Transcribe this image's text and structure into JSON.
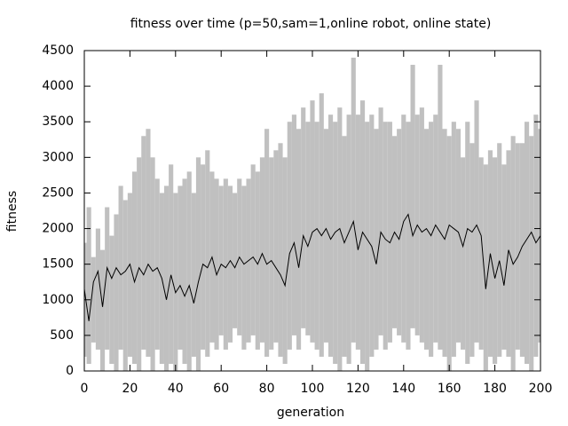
{
  "chart_data": {
    "type": "line",
    "title": "fitness over time (p=50,sam=1,online robot, online state)",
    "x_label": "generation",
    "y_label": "fitness",
    "x": [
      0,
      2,
      4,
      6,
      8,
      10,
      12,
      14,
      16,
      18,
      20,
      22,
      24,
      26,
      28,
      30,
      32,
      34,
      36,
      38,
      40,
      42,
      44,
      46,
      48,
      50,
      52,
      54,
      56,
      58,
      60,
      62,
      64,
      66,
      68,
      70,
      72,
      74,
      76,
      78,
      80,
      82,
      84,
      86,
      88,
      90,
      92,
      94,
      96,
      98,
      100,
      102,
      104,
      106,
      108,
      110,
      112,
      114,
      116,
      118,
      120,
      122,
      124,
      126,
      128,
      130,
      132,
      134,
      136,
      138,
      140,
      142,
      144,
      146,
      148,
      150,
      152,
      154,
      156,
      158,
      160,
      162,
      164,
      166,
      168,
      170,
      172,
      174,
      176,
      178,
      180,
      182,
      184,
      186,
      188,
      190,
      192,
      194,
      196,
      198,
      200
    ],
    "series": [
      {
        "color": "#c0c0c0",
        "fill": true,
        "values": [
          1800,
          2300,
          1600,
          2000,
          1700,
          2300,
          1900,
          2200,
          2600,
          2400,
          2500,
          2800,
          3000,
          3300,
          3400,
          3000,
          2700,
          2500,
          2600,
          2900,
          2500,
          2600,
          2700,
          2800,
          2500,
          3000,
          2900,
          3100,
          2800,
          2700,
          2600,
          2700,
          2600,
          2500,
          2700,
          2600,
          2700,
          2900,
          2800,
          3000,
          3400,
          3000,
          3100,
          3200,
          3000,
          3500,
          3600,
          3400,
          3700,
          3500,
          3800,
          3500,
          3900,
          3400,
          3600,
          3500,
          3700,
          3300,
          3600,
          4400,
          3600,
          3800,
          3500,
          3600,
          3400,
          3700,
          3500,
          3500,
          3300,
          3400,
          3600,
          3500,
          4300,
          3600,
          3700,
          3400,
          3500,
          3600,
          4300,
          3400,
          3300,
          3500,
          3400,
          3000,
          3500,
          3200,
          3800,
          3000,
          2900,
          3100,
          3000,
          3200,
          2900,
          3100,
          3300,
          3200,
          3200,
          3500,
          3300,
          3600,
          3400
        ],
        "lows": [
          200,
          100,
          400,
          300,
          0,
          300,
          100,
          0,
          300,
          0,
          200,
          100,
          0,
          300,
          200,
          0,
          300,
          100,
          0,
          100,
          0,
          300,
          100,
          0,
          200,
          0,
          300,
          200,
          400,
          300,
          500,
          300,
          400,
          600,
          500,
          300,
          400,
          500,
          300,
          400,
          200,
          300,
          400,
          200,
          100,
          300,
          500,
          300,
          600,
          500,
          400,
          300,
          200,
          400,
          200,
          100,
          0,
          200,
          100,
          400,
          300,
          100,
          0,
          200,
          300,
          500,
          300,
          400,
          600,
          500,
          400,
          300,
          600,
          500,
          400,
          300,
          200,
          400,
          300,
          200,
          0,
          200,
          400,
          300,
          100,
          200,
          400,
          300,
          0,
          200,
          100,
          200,
          300,
          200,
          0,
          300,
          200,
          100,
          0,
          200,
          400
        ]
      },
      {
        "color": "#000000",
        "values": [
          1150,
          700,
          1250,
          1400,
          900,
          1450,
          1300,
          1450,
          1350,
          1400,
          1500,
          1250,
          1450,
          1350,
          1500,
          1400,
          1450,
          1300,
          1000,
          1350,
          1100,
          1200,
          1050,
          1200,
          950,
          1250,
          1500,
          1450,
          1600,
          1350,
          1500,
          1450,
          1550,
          1450,
          1600,
          1500,
          1550,
          1600,
          1500,
          1650,
          1500,
          1550,
          1450,
          1350,
          1200,
          1650,
          1800,
          1450,
          1900,
          1750,
          1950,
          2000,
          1900,
          2000,
          1850,
          1950,
          2000,
          1800,
          1950,
          2100,
          1700,
          1950,
          1850,
          1750,
          1500,
          1950,
          1850,
          1800,
          1950,
          1850,
          2100,
          2200,
          1900,
          2050,
          1950,
          2000,
          1900,
          2050,
          1950,
          1850,
          2050,
          2000,
          1950,
          1750,
          2000,
          1950,
          2050,
          1900,
          1150,
          1650,
          1300,
          1550,
          1200,
          1700,
          1500,
          1600,
          1750,
          1850,
          1950,
          1800,
          1900
        ]
      }
    ],
    "xlim": [
      0,
      200
    ],
    "xticks": [
      0,
      20,
      40,
      60,
      80,
      100,
      120,
      140,
      160,
      180,
      200
    ],
    "ylim": [
      0,
      4500
    ],
    "yticks": [
      0,
      500,
      1000,
      1500,
      2000,
      2500,
      3000,
      3500,
      4000,
      4500
    ]
  }
}
